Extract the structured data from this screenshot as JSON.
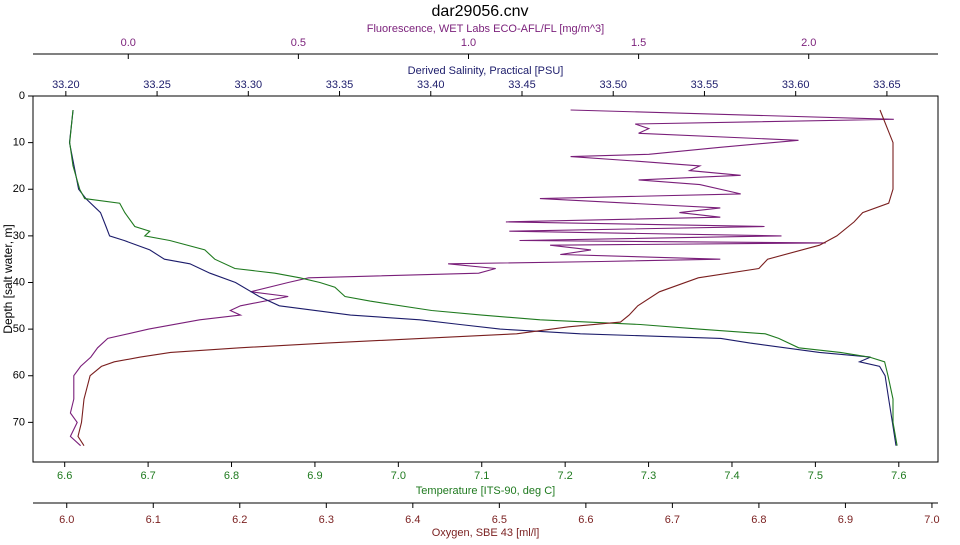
{
  "chart_data": {
    "type": "line",
    "title": "dar29056.cnv",
    "ylabel": "Depth [salt water, m]",
    "ylim": [
      0,
      78.5
    ],
    "yticks": [
      0,
      10,
      20,
      30,
      40,
      50,
      60,
      70
    ],
    "y_reversed": true,
    "series": [
      {
        "name": "Fluorescence, WET Labs ECO-AFL/FL [mg/m^3]",
        "color": "#7a1f7a",
        "position": "top",
        "xlim": [
          -0.28,
          2.38
        ],
        "xticks": [
          {
            "value": 0,
            "label": "0.0"
          },
          0.5,
          {
            "value": 1,
            "label": "1.0"
          },
          1.5,
          {
            "value": 2,
            "label": "2.0"
          }
        ],
        "depth": [
          3,
          5,
          6,
          7,
          8,
          9.5,
          11,
          12.5,
          13,
          14,
          15,
          16,
          17,
          18,
          19,
          21,
          22,
          24,
          25,
          26,
          27,
          28,
          29,
          30,
          31,
          31.5,
          32,
          33,
          34,
          35,
          35.5,
          36,
          37,
          38,
          39,
          40,
          42,
          43,
          45,
          46,
          47,
          48,
          50,
          52,
          54,
          56,
          58,
          60,
          65,
          68,
          70,
          73,
          75
        ],
        "values": [
          1.3,
          2.25,
          1.49,
          1.53,
          1.5,
          1.97,
          1.74,
          1.53,
          1.3,
          1.5,
          1.68,
          1.65,
          1.8,
          1.5,
          1.68,
          1.8,
          1.21,
          1.74,
          1.62,
          1.74,
          1.11,
          1.87,
          1.12,
          1.92,
          1.15,
          2.05,
          1.24,
          1.36,
          1.27,
          1.74,
          1.39,
          0.94,
          1.08,
          1.03,
          0.53,
          0.47,
          0.36,
          0.47,
          0.33,
          0.3,
          0.33,
          0.21,
          0.06,
          -0.06,
          -0.09,
          -0.11,
          -0.14,
          -0.16,
          -0.16,
          -0.17,
          -0.15,
          -0.17,
          -0.14
        ]
      },
      {
        "name": "Derived Salinity, Practical [PSU]",
        "color": "#1c1c6b",
        "position": "top",
        "xlim": [
          33.182,
          33.678
        ],
        "xticks": [
          {
            "value": 33.2,
            "label": "33.20"
          },
          33.25,
          {
            "value": 33.3,
            "label": "33.30"
          },
          33.35,
          {
            "value": 33.4,
            "label": "33.40"
          },
          33.45,
          {
            "value": 33.5,
            "label": "33.50"
          },
          33.55,
          {
            "value": 33.6,
            "label": "33.60"
          },
          33.65
        ],
        "depth": [
          3,
          10,
          20,
          22,
          25,
          28,
          30,
          31,
          33,
          35,
          36,
          38,
          40,
          43,
          45,
          47,
          48,
          49,
          50,
          51,
          52,
          53,
          55,
          56,
          57,
          58,
          60,
          65,
          70,
          75
        ],
        "values": [
          33.204,
          33.202,
          33.207,
          33.211,
          33.219,
          33.222,
          33.224,
          33.232,
          33.246,
          33.254,
          33.268,
          33.279,
          33.293,
          33.306,
          33.317,
          33.356,
          33.394,
          33.416,
          33.438,
          33.482,
          33.559,
          33.575,
          33.613,
          33.641,
          33.635,
          33.646,
          33.649,
          33.651,
          33.653,
          33.655
        ]
      },
      {
        "name": "Temperature [ITS-90, deg C]",
        "color": "#1f7a1f",
        "position": "bottom",
        "xlim": [
          6.562,
          7.647
        ],
        "xticks": [
          6.6,
          6.7,
          6.8,
          6.9,
          {
            "value": 7,
            "label": "7.0"
          },
          7.1,
          7.2,
          7.3,
          7.4,
          7.5,
          7.6
        ],
        "depth": [
          3,
          10,
          15,
          20,
          22,
          23,
          25,
          28,
          29,
          30,
          31,
          33,
          35,
          37,
          38,
          39,
          40,
          41,
          43,
          44,
          46,
          47,
          48,
          49,
          50,
          51,
          52,
          54,
          55,
          56,
          57,
          60,
          65,
          70,
          75
        ],
        "values": [
          6.61,
          6.606,
          6.61,
          6.618,
          6.624,
          6.666,
          6.672,
          6.684,
          6.702,
          6.696,
          6.726,
          6.768,
          6.78,
          6.804,
          6.852,
          6.882,
          6.906,
          6.924,
          6.936,
          6.966,
          7.04,
          7.1,
          7.17,
          7.29,
          7.36,
          7.44,
          7.456,
          7.48,
          7.53,
          7.565,
          7.583,
          7.587,
          7.593,
          7.593,
          7.598
        ]
      },
      {
        "name": "Oxygen, SBE 43 [ml/l]",
        "color": "#7a1f1f",
        "position": "bottom",
        "xlim": [
          5.961,
          7.007
        ],
        "xticks": [
          {
            "value": 6,
            "label": "6.0"
          },
          6.1,
          6.2,
          6.3,
          6.4,
          6.5,
          6.6,
          6.7,
          6.8,
          6.9,
          {
            "value": 7,
            "label": "7.0"
          }
        ],
        "depth": [
          3,
          10,
          20,
          23,
          25,
          27,
          30,
          32,
          35,
          37,
          39,
          42,
          45,
          47,
          48.5,
          49.5,
          51,
          52,
          53,
          54,
          55,
          56,
          57,
          58,
          60,
          65,
          70,
          73,
          75
        ],
        "values": [
          6.94,
          6.955,
          6.955,
          6.95,
          6.92,
          6.91,
          6.89,
          6.87,
          6.81,
          6.8,
          6.73,
          6.685,
          6.66,
          6.65,
          6.64,
          6.58,
          6.52,
          6.41,
          6.3,
          6.2,
          6.12,
          6.085,
          6.055,
          6.04,
          6.027,
          6.02,
          6.017,
          6.013,
          6.02
        ]
      }
    ]
  }
}
